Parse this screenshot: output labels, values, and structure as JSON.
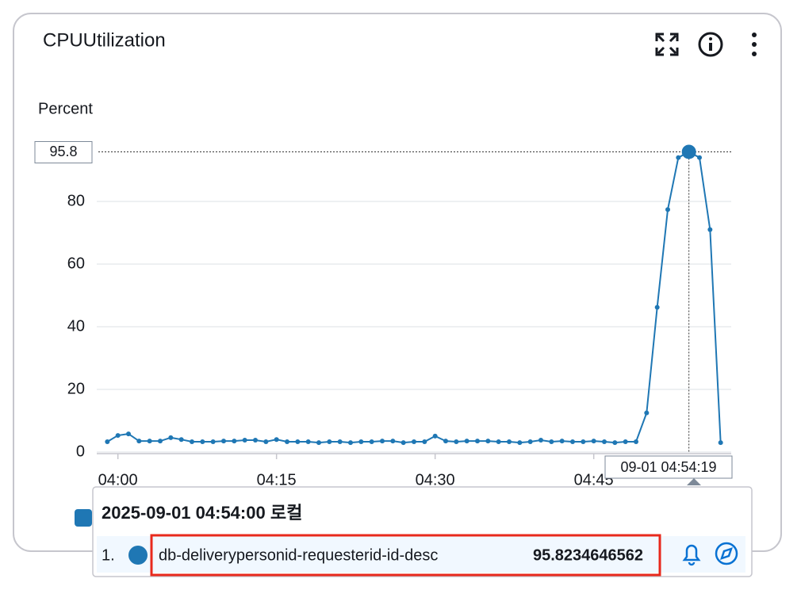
{
  "chart_data": {
    "type": "line",
    "title": "CPUUtilization",
    "y_label": "Percent",
    "x": [
      "03:59",
      "04:00",
      "04:01",
      "04:02",
      "04:03",
      "04:04",
      "04:05",
      "04:06",
      "04:07",
      "04:08",
      "04:09",
      "04:10",
      "04:11",
      "04:12",
      "04:13",
      "04:14",
      "04:15",
      "04:16",
      "04:17",
      "04:18",
      "04:19",
      "04:20",
      "04:21",
      "04:22",
      "04:23",
      "04:24",
      "04:25",
      "04:26",
      "04:27",
      "04:28",
      "04:29",
      "04:30",
      "04:31",
      "04:32",
      "04:33",
      "04:34",
      "04:35",
      "04:36",
      "04:37",
      "04:38",
      "04:39",
      "04:40",
      "04:41",
      "04:42",
      "04:43",
      "04:44",
      "04:45",
      "04:46",
      "04:47",
      "04:48",
      "04:49",
      "04:50",
      "04:51",
      "04:52",
      "04:53",
      "04:54",
      "04:55",
      "04:56",
      "04:57"
    ],
    "series": [
      {
        "name": "db-deliverypersonid-requesterid-id-desc",
        "color": "#1f77b4",
        "values": [
          3.3,
          5.3,
          5.8,
          3.5,
          3.5,
          3.5,
          4.6,
          4.0,
          3.3,
          3.3,
          3.3,
          3.5,
          3.5,
          3.8,
          3.8,
          3.3,
          4.0,
          3.3,
          3.3,
          3.3,
          3.0,
          3.3,
          3.3,
          3.0,
          3.3,
          3.3,
          3.5,
          3.5,
          3.0,
          3.3,
          3.3,
          5.1,
          3.5,
          3.3,
          3.5,
          3.5,
          3.5,
          3.3,
          3.3,
          3.0,
          3.3,
          3.8,
          3.3,
          3.5,
          3.3,
          3.3,
          3.5,
          3.3,
          3.0,
          3.3,
          3.3,
          12.5,
          46.2,
          77.4,
          94,
          95.8234646562,
          94,
          71,
          3.0
        ]
      }
    ],
    "xlim": [
      "03:58",
      "04:58"
    ],
    "xticks": [
      "04:00",
      "04:15",
      "04:30",
      "04:45"
    ],
    "ylim": [
      0,
      96.2
    ],
    "yticks": [
      0,
      20,
      40,
      60,
      80
    ],
    "grid": true,
    "hover": {
      "index": 55,
      "y_label": "95.8",
      "x_label": "09-01 04:54:19",
      "time": "2025-09-01 04:54:00 로컬",
      "rank": "1."
    }
  }
}
